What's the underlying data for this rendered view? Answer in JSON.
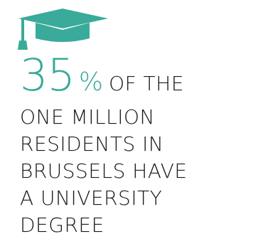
{
  "icon": "graduation-cap-icon",
  "colors": {
    "accent": "#3aaa9a",
    "text": "#1a1a1a"
  },
  "stat": {
    "value": "35",
    "unit": "%",
    "lead_words": "OF THE"
  },
  "text_lines": [
    "ONE MILLION",
    "RESIDENTS IN",
    "BRUSSELS HAVE",
    "A UNIVERSITY",
    "DEGREE"
  ]
}
